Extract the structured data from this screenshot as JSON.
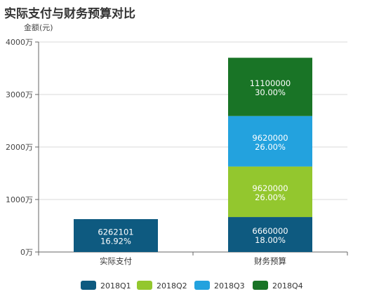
{
  "title": "实际支付与财务预算对比",
  "chart_data": {
    "type": "bar",
    "stacked": true,
    "title": "实际支付与财务预算对比",
    "ylabel": "金额(元)",
    "y_ticks": [
      "0万",
      "1000万",
      "2000万",
      "3000万",
      "4000万"
    ],
    "ylim": [
      0,
      40000000
    ],
    "grid": true,
    "legend_position": "bottom",
    "categories": [
      "实际支付",
      "财务预算"
    ],
    "series": [
      {
        "name": "2018Q1",
        "color": "#0e5a80",
        "values": [
          6262101,
          6660000
        ],
        "labels": [
          "16.92%",
          "18.00%"
        ]
      },
      {
        "name": "2018Q2",
        "color": "#93c72e",
        "values": [
          0,
          9620000
        ],
        "labels": [
          "",
          "26.00%"
        ]
      },
      {
        "name": "2018Q3",
        "color": "#23a2de",
        "values": [
          0,
          9620000
        ],
        "labels": [
          "",
          "26.00%"
        ]
      },
      {
        "name": "2018Q4",
        "color": "#197426",
        "values": [
          0,
          11100000
        ],
        "labels": [
          "",
          "30.00%"
        ]
      }
    ]
  }
}
